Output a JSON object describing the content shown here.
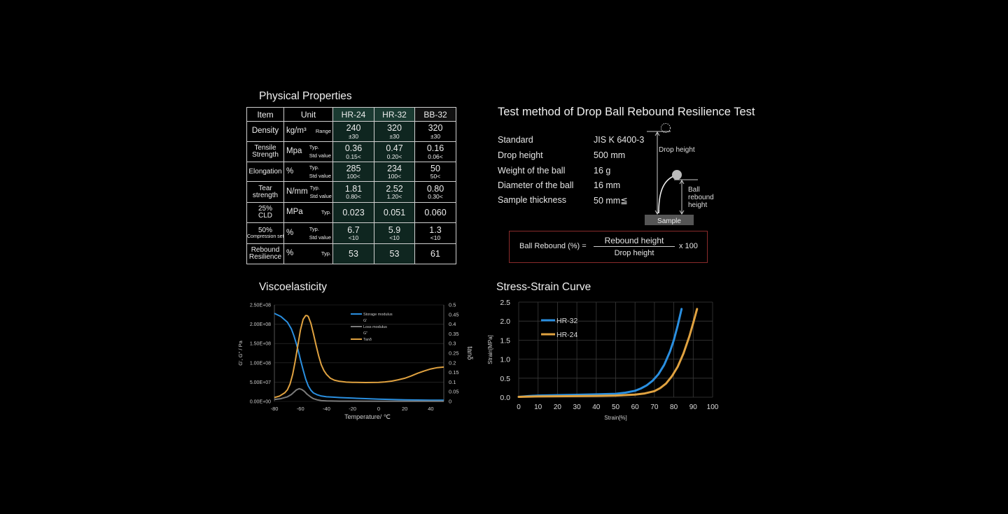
{
  "physical": {
    "title": "Physical Properties",
    "headers": [
      "Item",
      "Unit",
      "HR-24",
      "HR-32",
      "BB-32"
    ],
    "rows": [
      {
        "item": "Density",
        "unit": "kg/m³",
        "sub": "Range",
        "values": [
          [
            "240",
            "±30"
          ],
          [
            "320",
            "±30"
          ],
          [
            "320",
            "±30"
          ]
        ]
      },
      {
        "item": "Tensile\nStrength",
        "unit": "Mpa",
        "sub": "Typ.\nStd value",
        "values": [
          [
            "0.36",
            "0.15<"
          ],
          [
            "0.47",
            "0.20<"
          ],
          [
            "0.16",
            "0.06<"
          ]
        ]
      },
      {
        "item": "Elongation",
        "unit": "%",
        "sub": "Typ.\nStd value",
        "values": [
          [
            "285",
            "100<"
          ],
          [
            "234",
            "100<"
          ],
          [
            "50",
            "50<"
          ]
        ]
      },
      {
        "item": "Tear\nstrength",
        "unit": "N/mm",
        "sub": "Typ.\nStd value",
        "values": [
          [
            "1.81",
            "0.80<"
          ],
          [
            "2.52",
            "1.20<"
          ],
          [
            "0.80",
            "0.30<"
          ]
        ]
      },
      {
        "item": "25%\nCLD",
        "unit": "MPa",
        "sub": "Typ.",
        "values": [
          [
            "0.023",
            ""
          ],
          [
            "0.051",
            ""
          ],
          [
            "0.060",
            ""
          ]
        ]
      },
      {
        "item": "50%\nCompression set",
        "unit": "%",
        "sub": "Typ.\nStd value",
        "values": [
          [
            "6.7",
            "<10"
          ],
          [
            "5.9",
            "<10"
          ],
          [
            "1.3",
            "<10"
          ]
        ]
      },
      {
        "item": "Rebound\nResilience",
        "unit": "%",
        "sub": "Typ.",
        "values": [
          [
            "53",
            ""
          ],
          [
            "53",
            ""
          ],
          [
            "61",
            ""
          ]
        ]
      }
    ]
  },
  "test": {
    "title": "Test method of Drop Ball Rebound Resilience Test",
    "specs": [
      {
        "label": "Standard",
        "value": "JIS K 6400-3"
      },
      {
        "label": "Drop height",
        "value": "500 mm"
      },
      {
        "label": "Weight of the ball",
        "value": "16 g"
      },
      {
        "label": "Diameter of the ball",
        "value": "16 mm"
      },
      {
        "label": "Sample thickness",
        "value": "50 mm≦"
      }
    ],
    "diagram": {
      "drop_label": "Drop height",
      "rebound_label": "Ball\nrebound\nheight",
      "sample_label": "Sample"
    },
    "formula": {
      "lhs": "Ball Rebound (%) =",
      "numerator": "Rebound height",
      "denominator": "Drop height",
      "multiplier": "x 100"
    }
  },
  "chart_data": [
    {
      "type": "line",
      "title": "Viscoelasticity",
      "xlabel": "Temperature/ ℃",
      "ylabel": "G', G'' / Pa",
      "y2label": "tanδ",
      "xlim": [
        -80,
        50
      ],
      "ylim": [
        0,
        250000000
      ],
      "y2lim": [
        0,
        0.5
      ],
      "xticks": [
        "-80",
        "-60",
        "-40",
        "-20",
        "0",
        "20",
        "40"
      ],
      "xtick_values": [
        -80,
        -60,
        -40,
        -20,
        0,
        20,
        40
      ],
      "yticks": [
        "0.00E+00",
        "5.00E+07",
        "1.00E+08",
        "1.50E+08",
        "2.00E+08",
        "2.50E+08"
      ],
      "ytick_values": [
        0,
        50000000,
        100000000,
        150000000,
        200000000,
        250000000
      ],
      "y2ticks": [
        "0",
        "0.05",
        "0.1",
        "0.15",
        "0.2",
        "0.25",
        "0.3",
        "0.35",
        "0.4",
        "0.45",
        "0.5"
      ],
      "y2tick_values": [
        0,
        0.05,
        0.1,
        0.15,
        0.2,
        0.25,
        0.3,
        0.35,
        0.4,
        0.45,
        0.5
      ],
      "legend_position": "top-right",
      "series": [
        {
          "name": "Storage modulus",
          "sublabel": "G'",
          "color": "#2a8fe0",
          "axis": "left",
          "x": [
            -80,
            -75,
            -70,
            -67,
            -65,
            -63,
            -61,
            -60,
            -58,
            -56,
            -54,
            -52,
            -50,
            -47,
            -44,
            -40,
            -35,
            -30,
            -20,
            -10,
            0,
            10,
            20,
            30,
            40,
            50
          ],
          "y": [
            228000000,
            220000000,
            205000000,
            188000000,
            170000000,
            148000000,
            122000000,
            108000000,
            82000000,
            58000000,
            40000000,
            29000000,
            22000000,
            17000000,
            14000000,
            12000000,
            11000000,
            10000000,
            8500000,
            7200000,
            6000000,
            5000000,
            4200000,
            3600000,
            3200000,
            3000000
          ]
        },
        {
          "name": "Loss modulus",
          "sublabel": "G\"",
          "color": "#7a7a7a",
          "axis": "left",
          "x": [
            -80,
            -75,
            -70,
            -67,
            -65,
            -63,
            -61,
            -59,
            -57,
            -55,
            -52,
            -50,
            -47,
            -44,
            -40,
            -30,
            0,
            50
          ],
          "y": [
            5000000,
            7000000,
            12000000,
            18000000,
            24000000,
            30000000,
            33000000,
            31000000,
            26000000,
            19000000,
            11000000,
            7000000,
            4000000,
            2000000,
            1200000,
            800000,
            500000,
            400000
          ]
        },
        {
          "name": "Tanδ",
          "sublabel": "",
          "color": "#e0a240",
          "axis": "right",
          "x": [
            -80,
            -76,
            -72,
            -70,
            -68,
            -66,
            -64,
            -62,
            -60,
            -58,
            -56,
            -55,
            -54,
            -52,
            -50,
            -48,
            -46,
            -44,
            -42,
            -40,
            -37,
            -34,
            -30,
            -25,
            -20,
            -10,
            0,
            5,
            10,
            15,
            20,
            25,
            30,
            35,
            40,
            45,
            50
          ],
          "y": [
            0.02,
            0.028,
            0.045,
            0.06,
            0.09,
            0.14,
            0.21,
            0.29,
            0.37,
            0.425,
            0.445,
            0.445,
            0.44,
            0.405,
            0.35,
            0.29,
            0.235,
            0.19,
            0.16,
            0.14,
            0.12,
            0.11,
            0.104,
            0.1,
            0.099,
            0.098,
            0.099,
            0.101,
            0.105,
            0.112,
            0.12,
            0.132,
            0.146,
            0.158,
            0.168,
            0.175,
            0.178
          ]
        }
      ]
    },
    {
      "type": "line",
      "title": "Stress-Strain Curve",
      "xlabel": "Strain[%]",
      "ylabel": "Strain[MPa]",
      "xlim": [
        0,
        100
      ],
      "ylim": [
        0,
        2.5
      ],
      "xticks": [
        "0",
        "10",
        "20",
        "30",
        "40",
        "50",
        "60",
        "70",
        "80",
        "90",
        "100"
      ],
      "xtick_values": [
        0,
        10,
        20,
        30,
        40,
        50,
        60,
        70,
        80,
        90,
        100
      ],
      "yticks": [
        "0.0",
        "0.5",
        "1.0",
        "1.5",
        "2.0",
        "2.5"
      ],
      "ytick_values": [
        0,
        0.5,
        1,
        1.5,
        2,
        2.5
      ],
      "grid": true,
      "legend_position": "top-left",
      "series": [
        {
          "name": "HR-32",
          "color": "#2a8fe0",
          "x": [
            0,
            5,
            10,
            20,
            30,
            40,
            50,
            55,
            60,
            63,
            66,
            69,
            72,
            75,
            78,
            80,
            82,
            84
          ],
          "y": [
            0.01,
            0.03,
            0.045,
            0.055,
            0.065,
            0.075,
            0.09,
            0.12,
            0.17,
            0.23,
            0.31,
            0.43,
            0.6,
            0.85,
            1.2,
            1.5,
            1.88,
            2.32
          ]
        },
        {
          "name": "HR-24",
          "color": "#e0a240",
          "x": [
            0,
            10,
            20,
            30,
            40,
            50,
            60,
            65,
            70,
            73,
            76,
            79,
            82,
            85,
            88,
            90,
            92
          ],
          "y": [
            0.01,
            0.02,
            0.025,
            0.03,
            0.035,
            0.045,
            0.07,
            0.1,
            0.16,
            0.24,
            0.36,
            0.55,
            0.8,
            1.15,
            1.6,
            1.95,
            2.32
          ]
        }
      ]
    }
  ]
}
